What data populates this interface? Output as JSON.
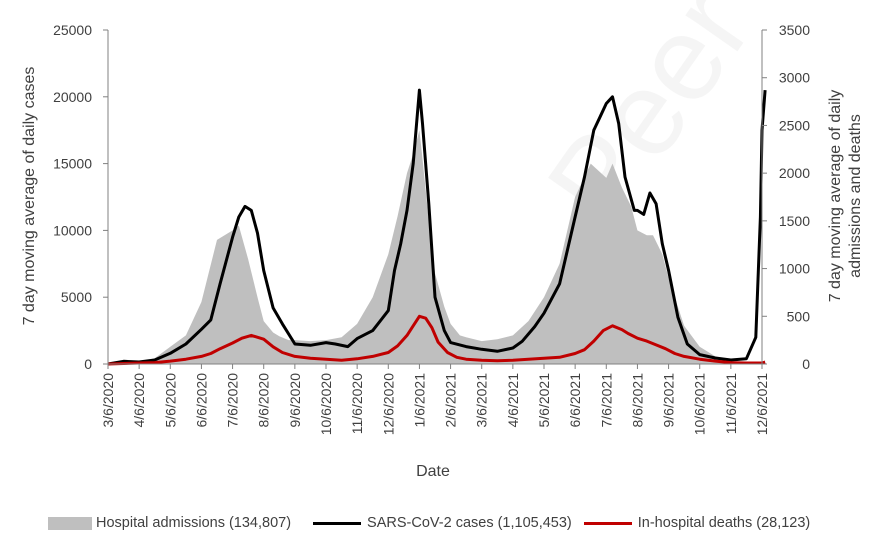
{
  "watermark": "Peer reviewed",
  "chart_data": {
    "type": "area",
    "xlabel": "Date",
    "ylabel_left": "7 day moving average of daily cases",
    "ylabel_right": "7 day moving average of daily admissions and deaths",
    "ylim_left": [
      0,
      25000
    ],
    "ylim_right": [
      0,
      3500
    ],
    "yticks_left": [
      "0",
      "5000",
      "10000",
      "15000",
      "20000",
      "25000"
    ],
    "yticks_right": [
      "0",
      "500",
      "1000",
      "1500",
      "2000",
      "2500",
      "3000",
      "3500"
    ],
    "x_tick_labels": [
      "3/6/2020",
      "4/6/2020",
      "5/6/2020",
      "6/6/2020",
      "7/6/2020",
      "8/6/2020",
      "9/6/2020",
      "10/6/2020",
      "11/6/2020",
      "12/6/2020",
      "1/6/2021",
      "2/6/2021",
      "3/6/2021",
      "4/6/2021",
      "5/6/2021",
      "6/6/2021",
      "7/6/2021",
      "8/6/2021",
      "9/6/2021",
      "10/6/2021",
      "11/6/2021",
      "12/6/2021"
    ],
    "month_index": [
      0,
      1,
      2,
      3,
      4,
      5,
      6,
      7,
      8,
      9,
      10,
      11,
      12,
      13,
      14,
      15,
      16,
      17,
      18,
      19,
      20,
      21
    ],
    "colors": {
      "admissions": "#bfbfbf",
      "cases": "#000000",
      "deaths": "#c00000"
    },
    "legend_position": "bottom",
    "series": [
      {
        "name": "Hospital admissions (134,807)",
        "axis": "right",
        "style": "area",
        "x": [
          0,
          0.5,
          1,
          1.5,
          2,
          2.5,
          3,
          3.5,
          4,
          4.2,
          4.5,
          4.8,
          5,
          5.3,
          5.5,
          5.8,
          6,
          6.5,
          7,
          7.5,
          8,
          8.5,
          9,
          9.3,
          9.6,
          9.8,
          10,
          10.1,
          10.3,
          10.5,
          10.8,
          11,
          11.3,
          11.5,
          12,
          12.5,
          13,
          13.5,
          14,
          14.5,
          15,
          15.5,
          16,
          16.2,
          16.5,
          16.8,
          17,
          17.3,
          17.5,
          17.8,
          18,
          18.3,
          18.5,
          19,
          19.5,
          20,
          20.5,
          20.8,
          21,
          21.1
        ],
        "values": [
          0,
          5,
          20,
          60,
          180,
          300,
          650,
          1300,
          1400,
          1450,
          1100,
          700,
          450,
          330,
          290,
          250,
          250,
          240,
          250,
          280,
          420,
          700,
          1150,
          1550,
          2000,
          2200,
          2450,
          2150,
          1500,
          950,
          600,
          420,
          300,
          280,
          240,
          260,
          300,
          450,
          700,
          1050,
          1750,
          2100,
          1950,
          2100,
          1850,
          1650,
          1400,
          1350,
          1350,
          1150,
          900,
          600,
          400,
          180,
          80,
          30,
          10,
          10,
          20,
          40
        ]
      },
      {
        "name": "SARS-CoV-2 cases (1,105,453)",
        "axis": "left",
        "style": "line",
        "x": [
          0,
          0.5,
          1,
          1.5,
          2,
          2.5,
          3,
          3.3,
          3.6,
          4,
          4.2,
          4.4,
          4.6,
          4.8,
          5,
          5.3,
          5.6,
          6,
          6.5,
          7,
          7.3,
          7.7,
          8,
          8.5,
          9,
          9.2,
          9.4,
          9.6,
          9.8,
          10,
          10.1,
          10.3,
          10.5,
          10.8,
          11,
          11.5,
          12,
          12.5,
          13,
          13.3,
          13.7,
          14,
          14.5,
          15,
          15.3,
          15.6,
          15.8,
          16,
          16.2,
          16.4,
          16.6,
          16.9,
          17,
          17.2,
          17.4,
          17.6,
          17.8,
          18,
          18.3,
          18.6,
          19,
          19.5,
          20,
          20.5,
          20.8,
          20.95,
          21,
          21.1
        ],
        "values": [
          0,
          200,
          150,
          300,
          800,
          1500,
          2600,
          3300,
          6000,
          9500,
          11000,
          11800,
          11500,
          9800,
          7000,
          4200,
          3000,
          1500,
          1400,
          1600,
          1500,
          1300,
          1900,
          2500,
          4000,
          7000,
          9000,
          11500,
          15000,
          20500,
          18000,
          12000,
          5000,
          2500,
          1600,
          1300,
          1100,
          950,
          1200,
          1700,
          2800,
          3800,
          6000,
          11000,
          14000,
          17500,
          18500,
          19500,
          20000,
          18000,
          14000,
          11500,
          11500,
          11200,
          12800,
          12000,
          9000,
          7000,
          3500,
          1500,
          700,
          450,
          300,
          400,
          2000,
          11000,
          17500,
          20500
        ]
      },
      {
        "name": "In-hospital deaths (28,123)",
        "axis": "right",
        "style": "line",
        "x": [
          0,
          0.5,
          1,
          1.5,
          2,
          2.5,
          3,
          3.3,
          3.6,
          4,
          4.3,
          4.6,
          5,
          5.3,
          5.6,
          6,
          6.5,
          7,
          7.5,
          8,
          8.5,
          9,
          9.3,
          9.6,
          9.8,
          10,
          10.2,
          10.4,
          10.6,
          10.9,
          11.2,
          11.5,
          12,
          12.5,
          13,
          13.5,
          14,
          14.5,
          15,
          15.3,
          15.6,
          15.9,
          16.2,
          16.5,
          16.7,
          17,
          17.3,
          17.6,
          17.9,
          18.2,
          18.5,
          19,
          19.5,
          20,
          20.5,
          21,
          21.1
        ],
        "values": [
          0,
          5,
          10,
          15,
          30,
          50,
          80,
          110,
          160,
          220,
          270,
          300,
          260,
          180,
          120,
          80,
          60,
          50,
          40,
          55,
          80,
          120,
          190,
          300,
          400,
          500,
          480,
          380,
          230,
          120,
          70,
          50,
          40,
          35,
          40,
          50,
          60,
          70,
          110,
          150,
          240,
          350,
          400,
          360,
          320,
          270,
          240,
          200,
          160,
          110,
          80,
          50,
          30,
          15,
          10,
          10,
          20
        ]
      }
    ]
  }
}
